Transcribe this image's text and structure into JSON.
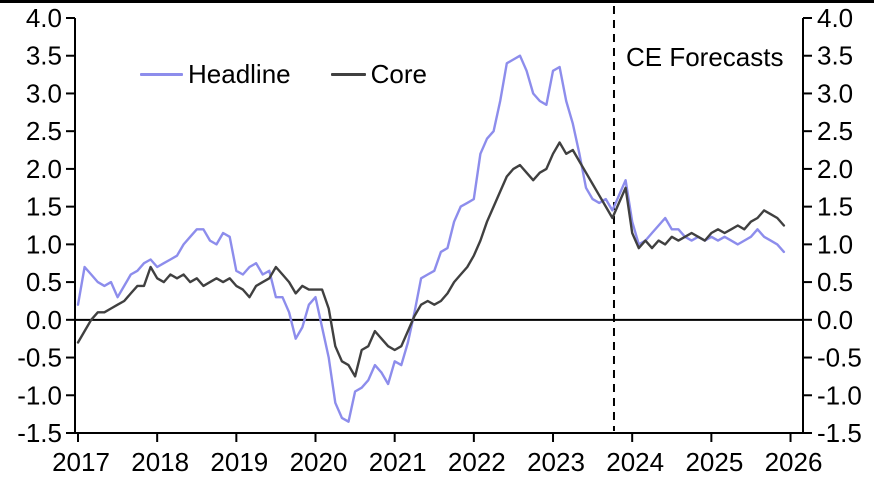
{
  "page": {
    "background_color": "#ffffff",
    "top_border_color": "#000000"
  },
  "chart_data": {
    "type": "line",
    "title": "",
    "xlabel": "",
    "ylabel": "",
    "ylim": [
      -1.5,
      4.0
    ],
    "y_tick_step": 0.5,
    "y_tick_labels": [
      "4.0",
      "3.5",
      "3.0",
      "2.5",
      "2.0",
      "1.5",
      "1.0",
      "0.5",
      "0.0",
      "-0.5",
      "-1.0",
      "-1.5"
    ],
    "x_tick_labels": [
      "2017",
      "2018",
      "2019",
      "2020",
      "2021",
      "2022",
      "2023",
      "2024",
      "2025",
      "2026"
    ],
    "x_start_year": 2017,
    "grid": false,
    "zero_line": true,
    "dual_y_axis": true,
    "legend_position": "top-left-inside",
    "forecast": {
      "label": "CE Forecasts",
      "line_style": "dashed",
      "line_color": "#000000",
      "x_year": 2023.77
    },
    "series": [
      {
        "name": "Headline",
        "color": "#8d8dec",
        "frequency": "monthly",
        "start": "2017-01",
        "end": "2025-12",
        "values": [
          0.2,
          0.7,
          0.6,
          0.5,
          0.45,
          0.5,
          0.3,
          0.45,
          0.6,
          0.65,
          0.75,
          0.8,
          0.7,
          0.75,
          0.8,
          0.85,
          1.0,
          1.1,
          1.2,
          1.2,
          1.05,
          1.0,
          1.15,
          1.1,
          0.65,
          0.6,
          0.7,
          0.75,
          0.6,
          0.65,
          0.3,
          0.3,
          0.1,
          -0.25,
          -0.1,
          0.2,
          0.3,
          -0.1,
          -0.5,
          -1.1,
          -1.3,
          -1.35,
          -0.95,
          -0.9,
          -0.8,
          -0.6,
          -0.7,
          -0.85,
          -0.55,
          -0.6,
          -0.3,
          0.1,
          0.55,
          0.6,
          0.65,
          0.9,
          0.95,
          1.3,
          1.5,
          1.55,
          1.6,
          2.2,
          2.4,
          2.5,
          2.9,
          3.4,
          3.45,
          3.5,
          3.3,
          3.0,
          2.9,
          2.85,
          3.3,
          3.35,
          2.9,
          2.6,
          2.2,
          1.75,
          1.6,
          1.55,
          1.6,
          1.45,
          1.65,
          1.85,
          1.3,
          1.0,
          1.05,
          1.15,
          1.25,
          1.35,
          1.2,
          1.2,
          1.1,
          1.05,
          1.1,
          1.05,
          1.1,
          1.05,
          1.1,
          1.05,
          1.0,
          1.05,
          1.1,
          1.2,
          1.1,
          1.05,
          1.0,
          0.9
        ]
      },
      {
        "name": "Core",
        "color": "#404040",
        "frequency": "monthly",
        "start": "2017-01",
        "end": "2025-12",
        "values": [
          -0.3,
          -0.15,
          0.0,
          0.1,
          0.1,
          0.15,
          0.2,
          0.25,
          0.35,
          0.45,
          0.45,
          0.7,
          0.55,
          0.5,
          0.6,
          0.55,
          0.6,
          0.5,
          0.55,
          0.45,
          0.5,
          0.55,
          0.5,
          0.55,
          0.45,
          0.4,
          0.3,
          0.45,
          0.5,
          0.55,
          0.7,
          0.6,
          0.5,
          0.35,
          0.45,
          0.4,
          0.4,
          0.4,
          0.15,
          -0.35,
          -0.55,
          -0.6,
          -0.75,
          -0.4,
          -0.35,
          -0.15,
          -0.25,
          -0.35,
          -0.4,
          -0.35,
          -0.15,
          0.05,
          0.2,
          0.25,
          0.2,
          0.25,
          0.35,
          0.5,
          0.6,
          0.7,
          0.85,
          1.05,
          1.3,
          1.5,
          1.7,
          1.9,
          2.0,
          2.05,
          1.95,
          1.85,
          1.95,
          2.0,
          2.2,
          2.35,
          2.2,
          2.25,
          2.1,
          1.95,
          1.8,
          1.65,
          1.5,
          1.35,
          1.55,
          1.75,
          1.15,
          0.95,
          1.05,
          0.95,
          1.05,
          1.0,
          1.1,
          1.05,
          1.1,
          1.15,
          1.1,
          1.05,
          1.15,
          1.2,
          1.15,
          1.2,
          1.25,
          1.2,
          1.3,
          1.35,
          1.45,
          1.4,
          1.35,
          1.25
        ]
      }
    ]
  }
}
